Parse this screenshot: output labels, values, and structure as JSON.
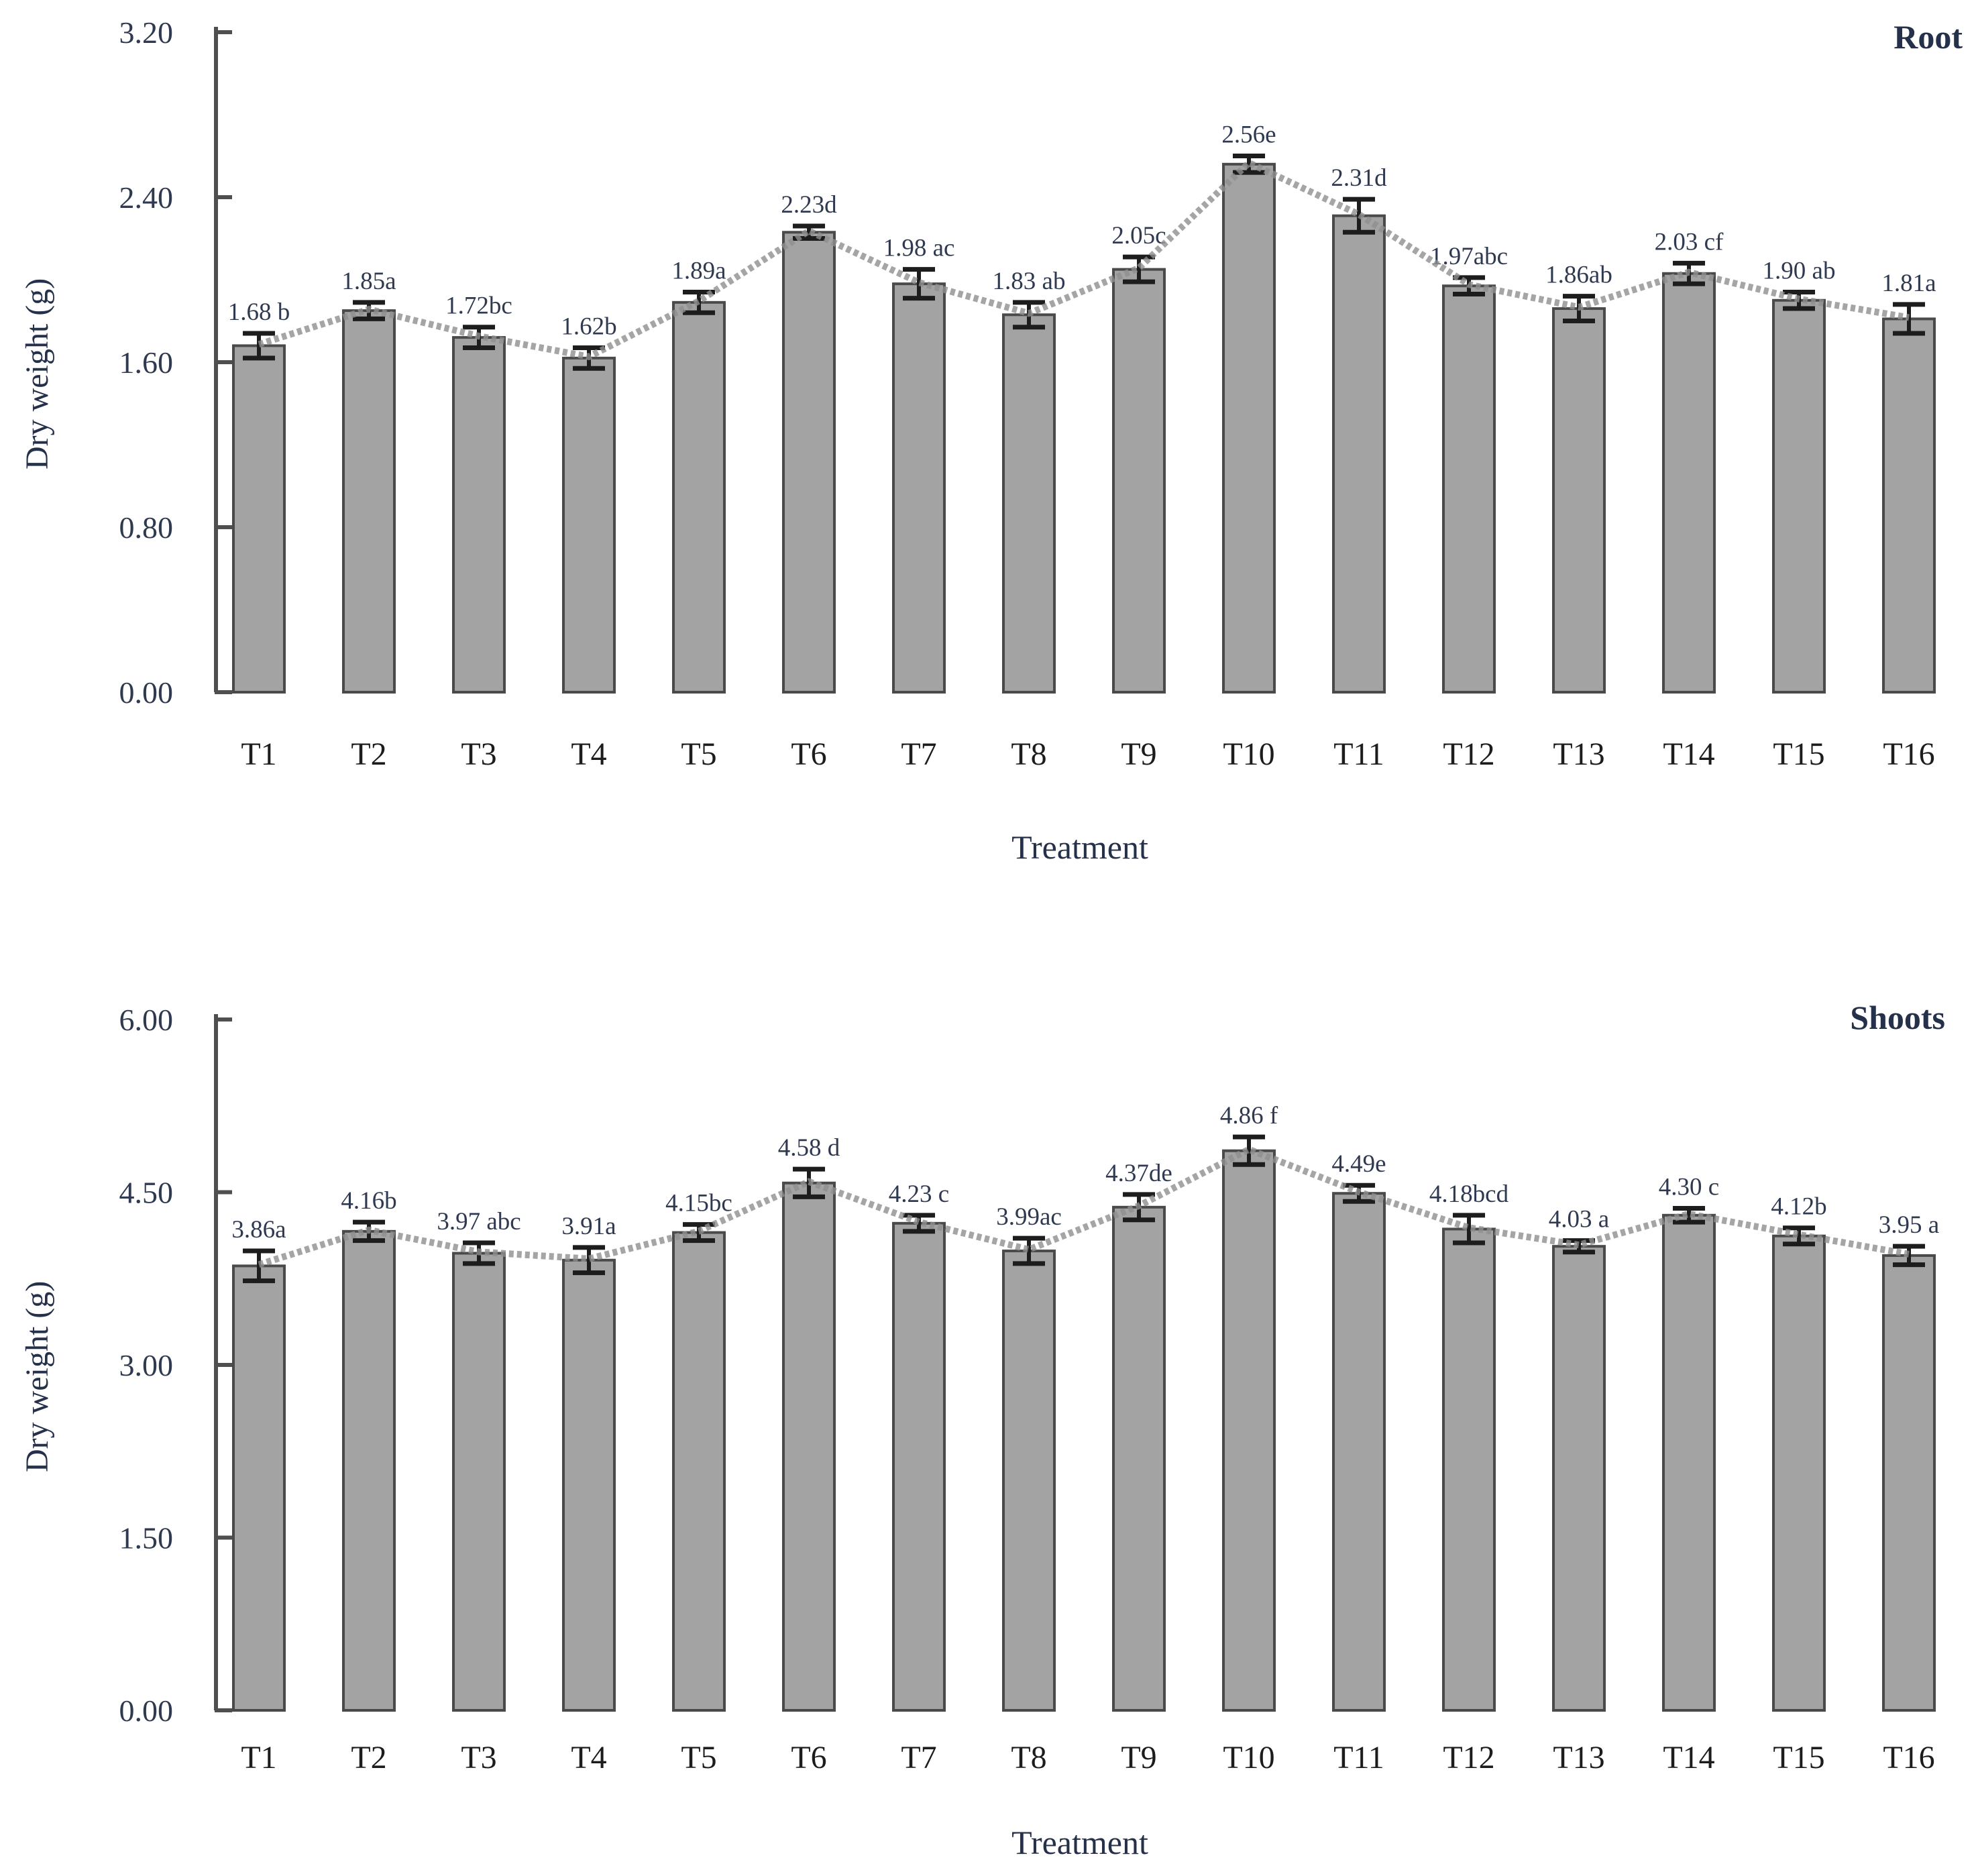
{
  "figure": {
    "background": "#ffffff"
  },
  "colors": {
    "bar_fill": "#a3a3a3",
    "bar_border": "#4a4a4a",
    "error_bar": "#1d1d1d",
    "trend_line": "#8f8f8f",
    "axis": "#4f4f4f",
    "tick_text": "#2f3950",
    "value_text": "#2f3950",
    "category_text": "#1c1c1c"
  },
  "chart_data": [
    {
      "type": "bar",
      "title": "Root",
      "xlabel": "Treatment",
      "ylabel": "Dry weight (g)",
      "legend_position": "none",
      "grid": false,
      "ylim": [
        0.0,
        3.2
      ],
      "ytick_values": [
        0.0,
        0.8,
        1.6,
        2.4,
        3.2
      ],
      "ytick_labels": [
        "0.00",
        "0.80",
        "1.60",
        "2.40",
        "3.20"
      ],
      "categories": [
        "T1",
        "T2",
        "T3",
        "T4",
        "T5",
        "T6",
        "T7",
        "T8",
        "T9",
        "T10",
        "T11",
        "T12",
        "T13",
        "T14",
        "T15",
        "T16"
      ],
      "values": [
        1.68,
        1.85,
        1.72,
        1.62,
        1.89,
        2.23,
        1.98,
        1.83,
        2.05,
        2.56,
        2.31,
        1.97,
        1.86,
        2.03,
        1.9,
        1.81
      ],
      "errors": [
        0.06,
        0.04,
        0.05,
        0.05,
        0.05,
        0.03,
        0.07,
        0.06,
        0.06,
        0.04,
        0.08,
        0.04,
        0.06,
        0.05,
        0.04,
        0.07
      ],
      "point_labels": [
        "1.68 b",
        "1.85a",
        "1.72bc",
        "1.62b",
        "1.89a",
        "2.23d",
        "1.98 ac",
        "1.83 ab",
        "2.05c",
        "2.56e",
        "2.31d",
        "1.97abc",
        "1.86ab",
        "2.03 cf",
        "1.90 ab",
        "1.81a"
      ],
      "overlay_line_series": "connects bar tops, dashed grey"
    },
    {
      "type": "bar",
      "title": "Shoots",
      "xlabel": "Treatment",
      "ylabel": "Dry weight (g)",
      "legend_position": "none",
      "grid": false,
      "ylim": [
        0.0,
        6.0
      ],
      "ytick_values": [
        0.0,
        1.5,
        3.0,
        4.5,
        6.0
      ],
      "ytick_labels": [
        "0.00",
        "1.50",
        "3.00",
        "4.50",
        "6.00"
      ],
      "categories": [
        "T1",
        "T2",
        "T3",
        "T4",
        "T5",
        "T6",
        "T7",
        "T8",
        "T9",
        "T10",
        "T11",
        "T12",
        "T13",
        "T14",
        "T15",
        "T16"
      ],
      "values": [
        3.86,
        4.16,
        3.97,
        3.91,
        4.15,
        4.58,
        4.23,
        3.99,
        4.37,
        4.86,
        4.49,
        4.18,
        4.03,
        4.3,
        4.12,
        3.95
      ],
      "errors": [
        0.13,
        0.08,
        0.09,
        0.11,
        0.07,
        0.12,
        0.07,
        0.11,
        0.11,
        0.12,
        0.07,
        0.12,
        0.05,
        0.06,
        0.07,
        0.08
      ],
      "point_labels": [
        "3.86a",
        "4.16b",
        "3.97 abc",
        "3.91a",
        "4.15bc",
        "4.58 d",
        "4.23 c",
        "3.99ac",
        "4.37de",
        "4.86 f",
        "4.49e",
        "4.18bcd",
        "4.03 a",
        "4.30 c",
        "4.12b",
        "3.95 a"
      ],
      "overlay_line_series": "connects bar tops, dashed grey"
    }
  ]
}
